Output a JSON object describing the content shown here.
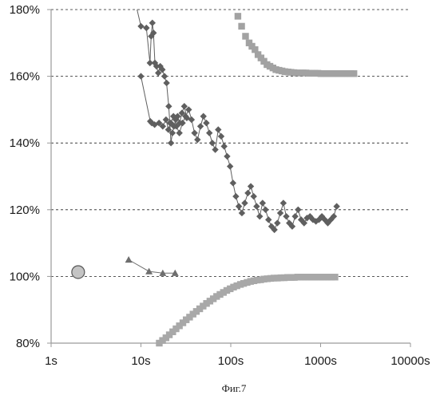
{
  "chart_data": {
    "type": "scatter",
    "caption": "Фиг.7",
    "x_scale": "log",
    "xlim": [
      1,
      10000
    ],
    "ylim": [
      80,
      180
    ],
    "x_tick_labels": [
      "1s",
      "10s",
      "100s",
      "1000s",
      "10000s"
    ],
    "y_tick_labels": [
      "80%",
      "100%",
      "120%",
      "140%",
      "160%",
      "180%"
    ],
    "y_tick_values": [
      80,
      100,
      120,
      140,
      160,
      180
    ],
    "x_tick_values": [
      1,
      10,
      100,
      1000,
      10000
    ],
    "grid": "horizontal-dashed",
    "colors": {
      "diamond_series": "#5f5f5f",
      "top_square_series": "#a2a2a2",
      "bottom_square_series": "#a8a8a8",
      "triangle_series": "#6e6e6e",
      "circle_fill": "#c4c4c4",
      "grid": "#222222",
      "axis": "#9a9a9a"
    },
    "series": [
      {
        "marker": "diamond",
        "connected": true,
        "x": [
          10.0,
          12.7,
          13.2,
          14.2,
          15.9,
          17.5,
          19.0,
          20.2,
          21.5,
          23.0,
          24.8,
          26.8,
          29.0,
          31.4,
          34.0,
          36.6,
          39.5,
          42.6,
          46.0,
          49.6,
          53.5,
          57.8,
          62.3,
          67.2,
          72.5,
          78.2,
          84.4,
          91.1,
          98.3,
          106.0,
          114.0,
          123.0,
          133.0,
          143.0,
          155.0,
          167.0,
          180.0,
          194.0,
          210.0,
          226.0,
          244.0,
          263.0,
          284.0,
          306.0,
          330.0,
          356.0,
          385.0,
          415.0,
          448.0,
          483.0,
          521.0,
          562.0,
          607.0,
          655.0,
          706.0,
          762.0,
          822.0,
          887.0,
          957.0,
          1033.0,
          1114.0,
          1202.0,
          1297.0,
          1400.0,
          1510.0
        ],
        "y": [
          160.0,
          146.5,
          146.0,
          145.5,
          146.0,
          145.0,
          147.0,
          144.0,
          146.0,
          148.0,
          145.0,
          143.0,
          146.0,
          148.0,
          150.0,
          147.0,
          143.0,
          141.0,
          145.0,
          148.0,
          146.0,
          143.0,
          140.0,
          138.0,
          144.0,
          142.0,
          139.0,
          136.0,
          133.0,
          128.0,
          124.0,
          121.0,
          119.0,
          122.0,
          125.0,
          127.0,
          124.0,
          121.0,
          118.0,
          122.0,
          120.0,
          117.0,
          115.0,
          114.0,
          116.0,
          119.0,
          122.0,
          118.0,
          116.0,
          115.0,
          118.0,
          120.0,
          117.0,
          116.0,
          117.5,
          118.0,
          117.0,
          116.5,
          117.0,
          118.0,
          117.0,
          116.0,
          117.0,
          118.0,
          121.0
        ]
      },
      {
        "marker": "diamond",
        "connected": true,
        "x": [
          8.7,
          10.0,
          11.5,
          12.6,
          13.0,
          13.4,
          13.8,
          14.3,
          14.9,
          15.6,
          16.4,
          17.3,
          18.3,
          19.3,
          20.4,
          21.0,
          21.6,
          22.4,
          23.3,
          24.4,
          25.6,
          27.0,
          28.6,
          30.4,
          32.4
        ],
        "y": [
          182.0,
          175.0,
          174.5,
          164.0,
          172.0,
          176.0,
          173.0,
          164.0,
          163.0,
          161.0,
          163.0,
          162.0,
          160.0,
          158.0,
          151.0,
          146.0,
          140.0,
          143.0,
          145.0,
          147.0,
          148.0,
          146.0,
          149.0,
          151.0,
          147.5
        ]
      },
      {
        "marker": "square",
        "connected": false,
        "x": [
          120.0,
          132.0,
          146.0,
          160.0,
          172.0,
          186.0,
          201.0,
          217.0,
          234.0,
          253.0,
          273.0,
          295.0,
          318.0,
          344.0,
          371.0,
          401.0,
          433.0,
          467.0,
          505.0,
          545.0,
          589.0,
          636.0,
          686.0,
          741.0,
          800.0,
          864.0,
          933.0,
          1008.0,
          1088.0,
          1175.0,
          1269.0,
          1370.0,
          1480.0,
          1598.0,
          1726.0,
          1864.0,
          2013.0,
          2174.0,
          2348.0
        ],
        "y": [
          178.0,
          175.0,
          172.0,
          170.0,
          169.0,
          168.0,
          166.5,
          165.5,
          164.5,
          163.5,
          163.0,
          162.5,
          162.0,
          161.8,
          161.6,
          161.4,
          161.3,
          161.2,
          161.1,
          161.0,
          161.0,
          161.0,
          161.0,
          160.9,
          160.9,
          160.9,
          160.9,
          160.8,
          160.8,
          160.8,
          160.8,
          160.8,
          160.8,
          160.8,
          160.8,
          160.8,
          160.8,
          160.8,
          160.8
        ]
      },
      {
        "marker": "square",
        "connected": false,
        "x": [
          16.0,
          17.4,
          19.0,
          20.7,
          22.6,
          24.6,
          26.8,
          29.3,
          31.9,
          34.8,
          38.0,
          41.4,
          45.1,
          49.2,
          53.7,
          58.6,
          63.9,
          69.6,
          75.9,
          82.8,
          90.3,
          98.5,
          107.4,
          117.0,
          128.0,
          139.0,
          152.0,
          166.0,
          181.0,
          197.0,
          215.0,
          234.0,
          255.0,
          278.0,
          303.0,
          331.0,
          361.0,
          393.0,
          429.0,
          468.0,
          510.0,
          556.0,
          607.0,
          661.0,
          721.0,
          787.0,
          858.0,
          936.0,
          1021.0,
          1113.0,
          1214.0,
          1324.0,
          1444.0
        ],
        "y": [
          80.0,
          80.8,
          81.6,
          82.5,
          83.4,
          84.3,
          85.2,
          86.1,
          87.0,
          87.8,
          88.7,
          89.5,
          90.3,
          91.1,
          91.9,
          92.6,
          93.3,
          94.0,
          94.6,
          95.2,
          95.8,
          96.3,
          96.8,
          97.2,
          97.6,
          97.9,
          98.2,
          98.5,
          98.7,
          98.9,
          99.0,
          99.2,
          99.3,
          99.4,
          99.5,
          99.5,
          99.6,
          99.6,
          99.7,
          99.7,
          99.7,
          99.8,
          99.8,
          99.8,
          99.8,
          99.8,
          99.8,
          99.8,
          99.8,
          99.8,
          99.8,
          99.8,
          99.8
        ]
      },
      {
        "marker": "triangle",
        "connected": true,
        "x": [
          7.3,
          12.3,
          17.5,
          24.0
        ],
        "y": [
          105.0,
          101.5,
          101.0,
          101.0
        ]
      },
      {
        "marker": "circle",
        "connected": false,
        "x": [
          2.0
        ],
        "y": [
          101.3
        ]
      }
    ]
  }
}
